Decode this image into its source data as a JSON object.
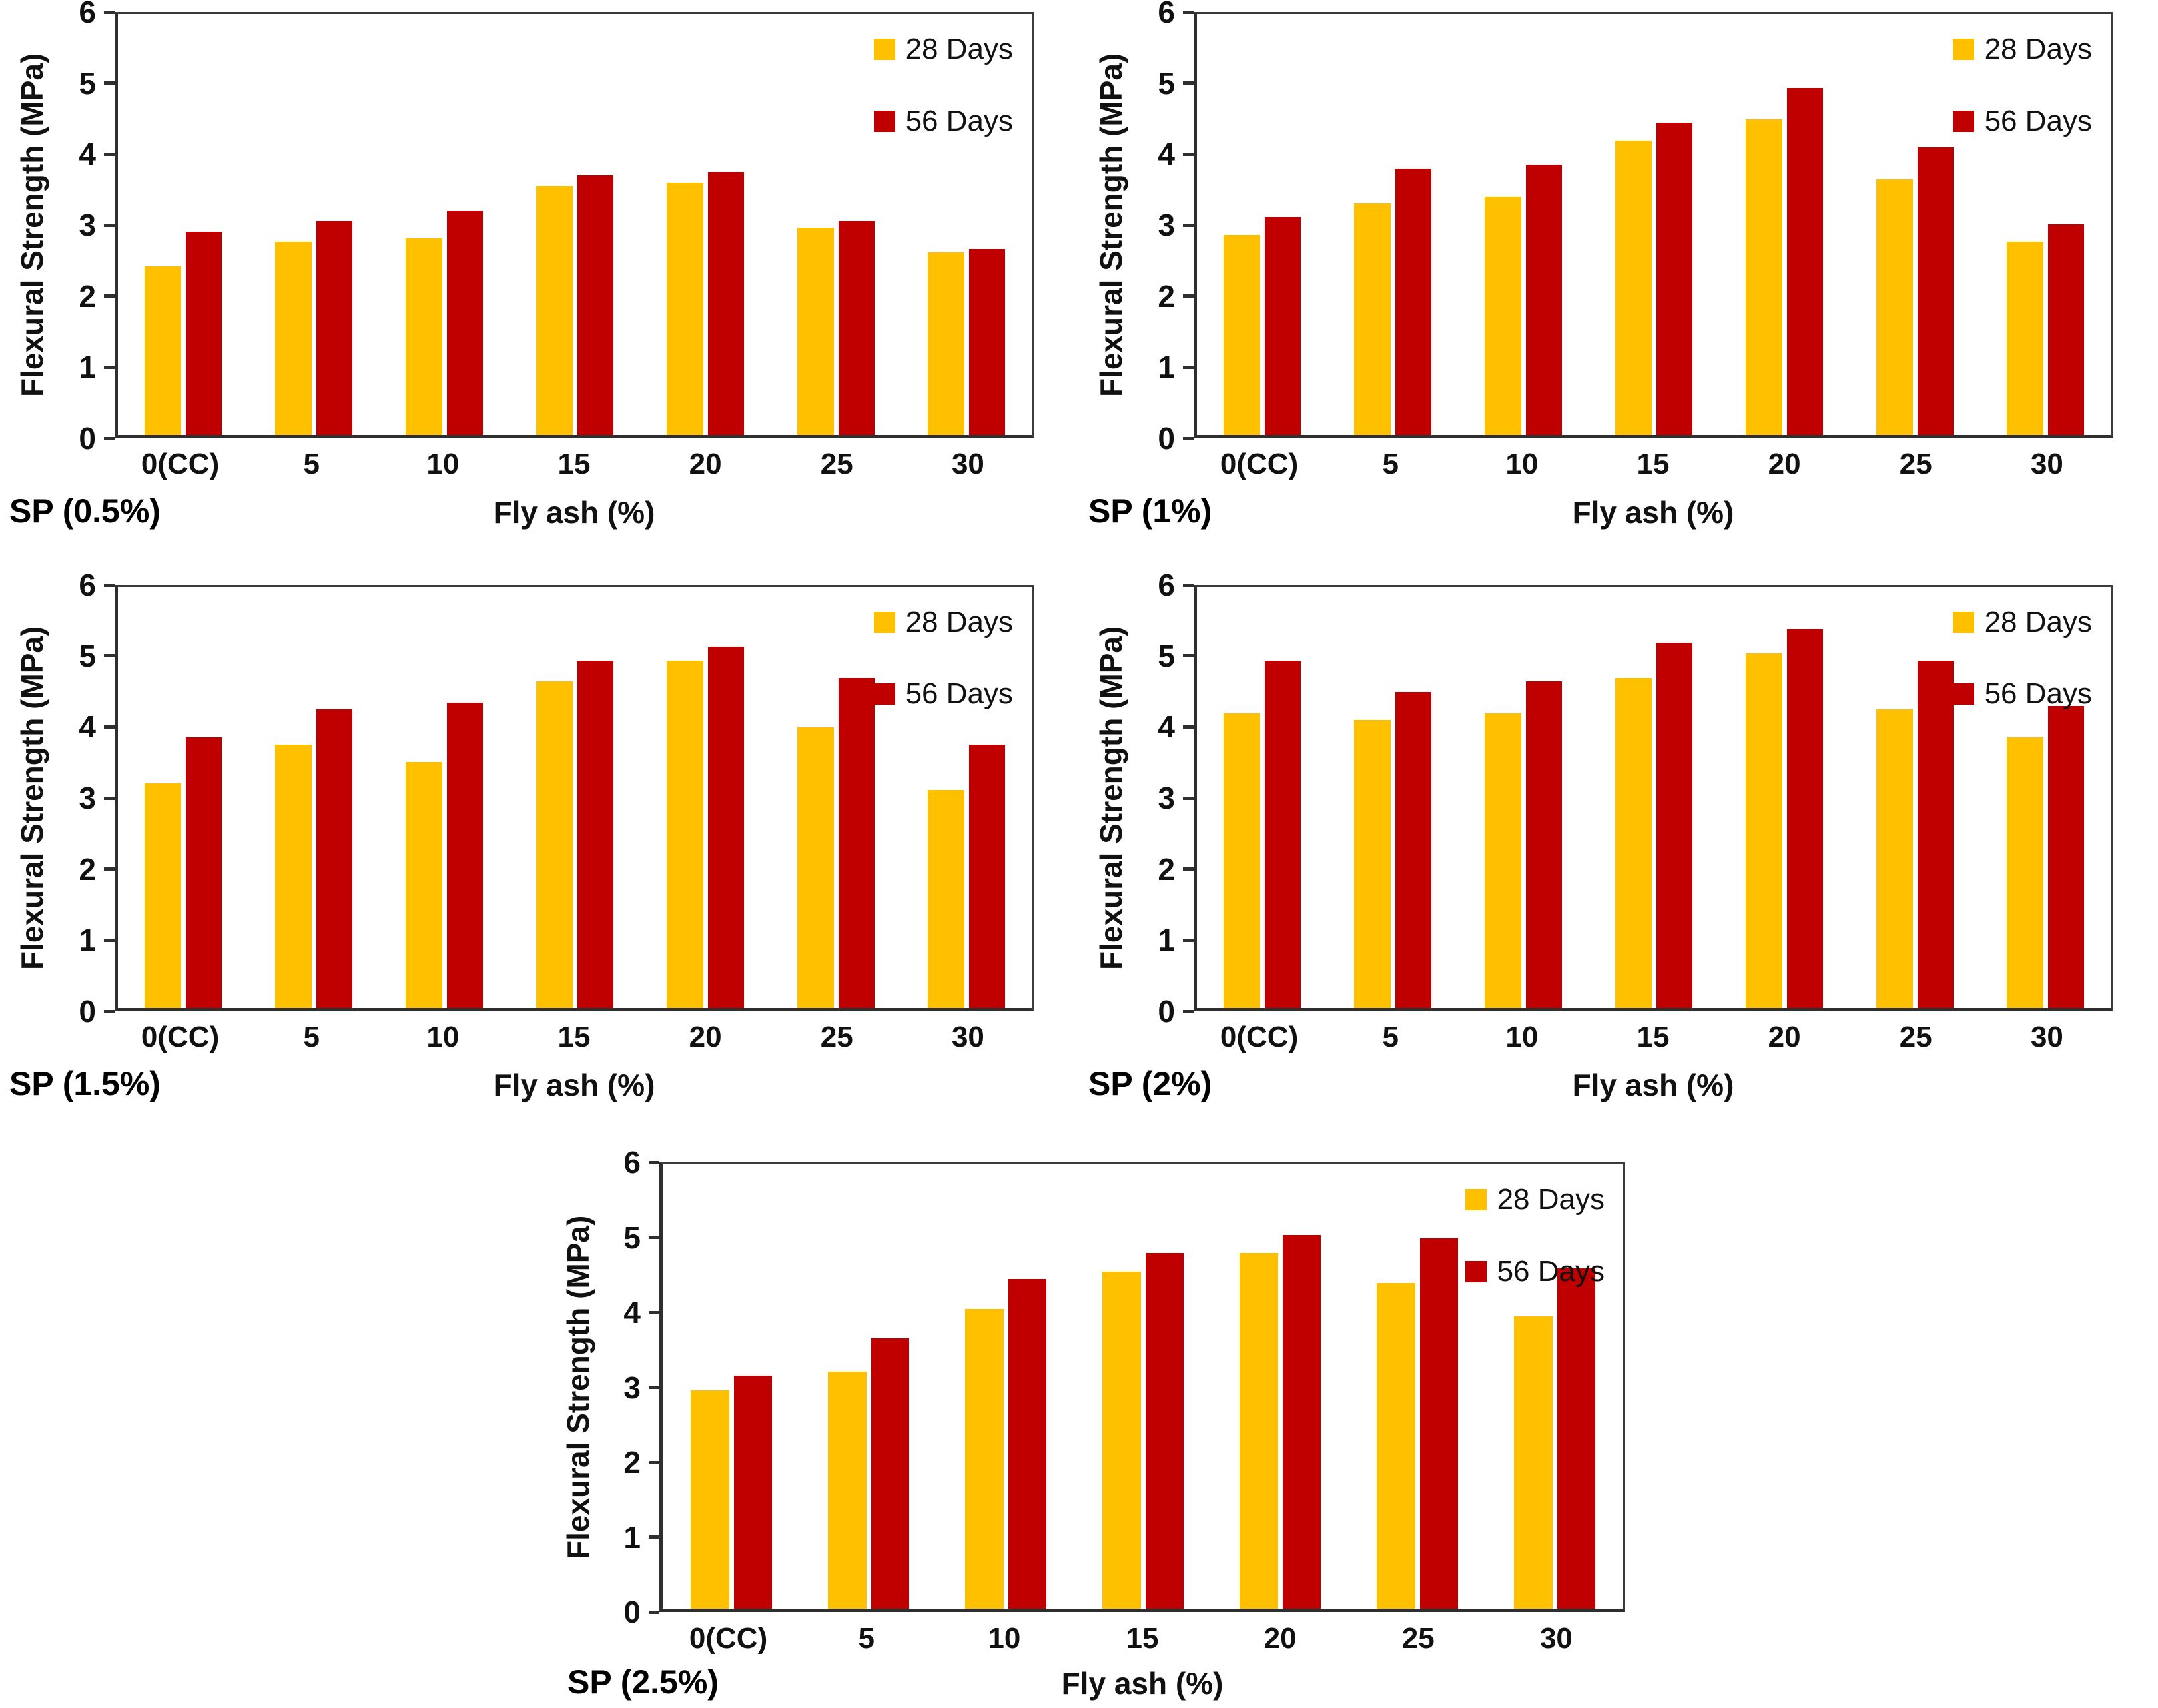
{
  "figure": {
    "background": "#ffffff",
    "series_colors": {
      "28_days": "#FFC000",
      "56_days": "#C00000"
    }
  },
  "chart_data": [
    {
      "type": "bar",
      "label": "SP (0.5%)",
      "ylabel": "Flexural Strength (MPa)",
      "xlabel": "Fly ash (%)",
      "ylim": [
        0,
        6
      ],
      "yticks": [
        0,
        1,
        2,
        3,
        4,
        5,
        6
      ],
      "legend_position": "top-right",
      "categories": [
        "0(CC)",
        "5",
        "10",
        "15",
        "20",
        "25",
        "30"
      ],
      "series": [
        {
          "name": "28 Days",
          "color": "#FFC000",
          "values": [
            2.4,
            2.75,
            2.8,
            3.55,
            3.6,
            2.95,
            2.6
          ]
        },
        {
          "name": "56 Days",
          "color": "#C00000",
          "values": [
            2.9,
            3.05,
            3.2,
            3.7,
            3.75,
            3.05,
            2.65
          ]
        }
      ]
    },
    {
      "type": "bar",
      "label": "SP (1%)",
      "ylabel": "Flexural Strength (MPa)",
      "xlabel": "Fly ash (%)",
      "ylim": [
        0,
        6
      ],
      "yticks": [
        0,
        1,
        2,
        3,
        4,
        5,
        6
      ],
      "legend_position": "top-right",
      "categories": [
        "0(CC)",
        "5",
        "10",
        "15",
        "20",
        "25",
        "30"
      ],
      "series": [
        {
          "name": "28 Days",
          "color": "#FFC000",
          "values": [
            2.85,
            3.3,
            3.4,
            4.2,
            4.5,
            3.65,
            2.75
          ]
        },
        {
          "name": "56 Days",
          "color": "#C00000",
          "values": [
            3.1,
            3.8,
            3.85,
            4.45,
            4.95,
            4.1,
            3.0
          ]
        }
      ]
    },
    {
      "type": "bar",
      "label": "SP (1.5%)",
      "ylabel": "Flexural Strength (MPa)",
      "xlabel": "Fly ash (%)",
      "ylim": [
        0,
        6
      ],
      "yticks": [
        0,
        1,
        2,
        3,
        4,
        5,
        6
      ],
      "legend_position": "top-right",
      "categories": [
        "0(CC)",
        "5",
        "10",
        "15",
        "20",
        "25",
        "30"
      ],
      "series": [
        {
          "name": "28 Days",
          "color": "#FFC000",
          "values": [
            3.2,
            3.75,
            3.5,
            4.65,
            4.95,
            4.0,
            3.1
          ]
        },
        {
          "name": "56 Days",
          "color": "#C00000",
          "values": [
            3.85,
            4.25,
            4.35,
            4.95,
            5.15,
            4.7,
            3.75
          ]
        }
      ]
    },
    {
      "type": "bar",
      "label": "SP (2%)",
      "ylabel": "Flexural Strength (MPa)",
      "xlabel": "Fly ash (%)",
      "ylim": [
        0,
        6
      ],
      "yticks": [
        0,
        1,
        2,
        3,
        4,
        5,
        6
      ],
      "legend_position": "top-right",
      "categories": [
        "0(CC)",
        "5",
        "10",
        "15",
        "20",
        "25",
        "30"
      ],
      "series": [
        {
          "name": "28 Days",
          "color": "#FFC000",
          "values": [
            4.2,
            4.1,
            4.2,
            4.7,
            5.05,
            4.25,
            3.85
          ]
        },
        {
          "name": "56 Days",
          "color": "#C00000",
          "values": [
            4.95,
            4.5,
            4.65,
            5.2,
            5.4,
            4.95,
            4.3
          ]
        }
      ]
    },
    {
      "type": "bar",
      "label": "SP (2.5%)",
      "ylabel": "Flexural Strength (MPa)",
      "xlabel": "Fly ash (%)",
      "ylim": [
        0,
        6
      ],
      "yticks": [
        0,
        1,
        2,
        3,
        4,
        5,
        6
      ],
      "legend_position": "top-right",
      "categories": [
        "0(CC)",
        "5",
        "10",
        "15",
        "20",
        "25",
        "30"
      ],
      "series": [
        {
          "name": "28 Days",
          "color": "#FFC000",
          "values": [
            2.95,
            3.2,
            4.05,
            4.55,
            4.8,
            4.4,
            3.95
          ]
        },
        {
          "name": "56 Days",
          "color": "#C00000",
          "values": [
            3.15,
            3.65,
            4.45,
            4.8,
            5.05,
            5.0,
            4.6
          ]
        }
      ]
    }
  ]
}
